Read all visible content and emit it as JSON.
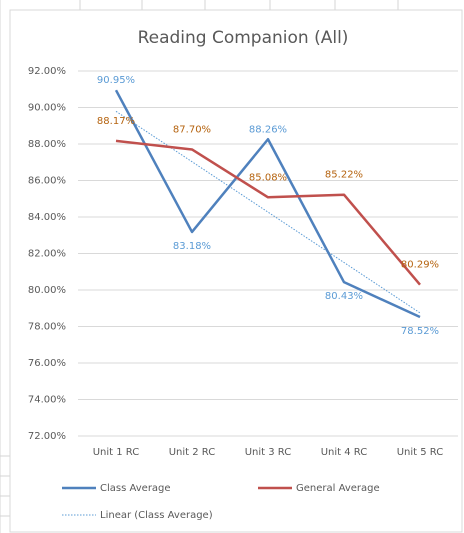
{
  "chart_data": {
    "type": "line",
    "title": "Reading Companion (All)",
    "categories": [
      "Unit 1 RC",
      "Unit 2 RC",
      "Unit 3 RC",
      "Unit 4 RC",
      "Unit 5 RC"
    ],
    "series": [
      {
        "name": "Class Average",
        "color": "#4f81bd",
        "label_color": "#5b9bd5",
        "values": [
          90.95,
          83.18,
          88.26,
          80.43,
          78.52
        ],
        "value_labels": [
          "90.95%",
          "83.18%",
          "88.26%",
          "80.43%",
          "78.52%"
        ]
      },
      {
        "name": "General Average",
        "color": "#c0504d",
        "label_color": "#b5630f",
        "values": [
          88.17,
          87.7,
          85.08,
          85.22,
          80.29
        ],
        "value_labels": [
          "88.17%",
          "87.70%",
          "85.08%",
          "85.22%",
          "80.29%"
        ]
      }
    ],
    "trendline": {
      "name": "Linear (Class Average)",
      "type": "linear",
      "series": 0,
      "color": "#5b9bd5"
    },
    "ylim": [
      72,
      92
    ],
    "yticks": [
      {
        "value": 72,
        "label": "72.00%"
      },
      {
        "value": 74,
        "label": "74.00%"
      },
      {
        "value": 76,
        "label": "76.00%"
      },
      {
        "value": 78,
        "label": "78.00%"
      },
      {
        "value": 80,
        "label": "80.00%"
      },
      {
        "value": 82,
        "label": "82.00%"
      },
      {
        "value": 84,
        "label": "84.00%"
      },
      {
        "value": 86,
        "label": "86.00%"
      },
      {
        "value": 88,
        "label": "88.00%"
      },
      {
        "value": 90,
        "label": "90.00%"
      },
      {
        "value": 92,
        "label": "92.00%"
      }
    ],
    "grid": true,
    "legend": "bottom"
  }
}
